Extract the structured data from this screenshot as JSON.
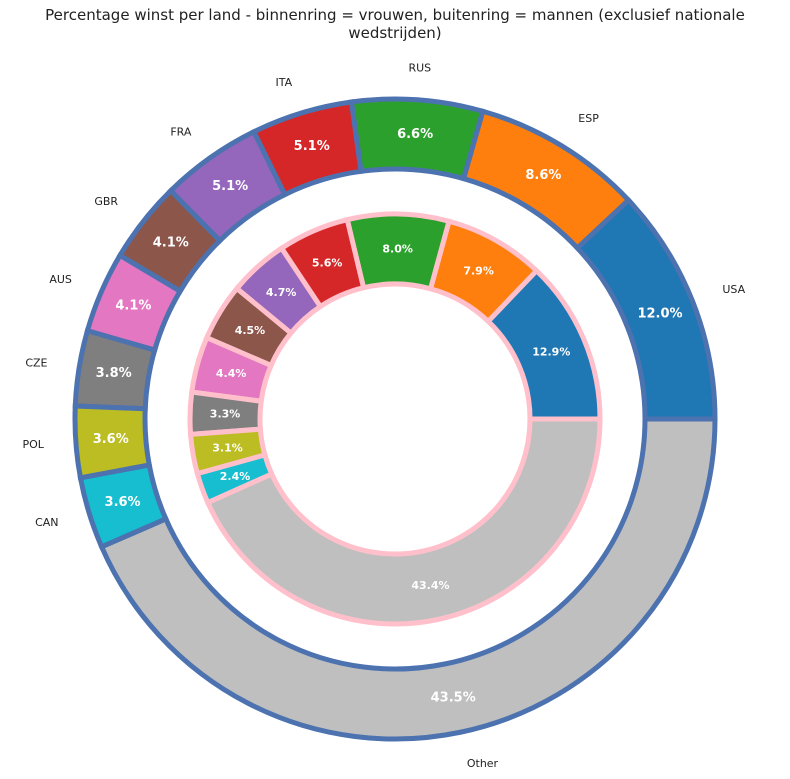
{
  "chart_data": {
    "type": "pie",
    "title": "Percentage winst per land - binnenring = vrouwen, buitenring = mannen (exclusief nationale wedstrijden)",
    "categories": [
      "USA",
      "ESP",
      "RUS",
      "ITA",
      "FRA",
      "GBR",
      "AUS",
      "CZE",
      "POL",
      "CAN",
      "Other"
    ],
    "series": [
      {
        "ring": "outer",
        "values": [
          12.0,
          8.6,
          6.6,
          5.1,
          5.1,
          4.1,
          4.1,
          3.8,
          3.6,
          3.6,
          43.5
        ],
        "labels": [
          "12.0%",
          "8.6%",
          "6.6%",
          "5.1%",
          "5.1%",
          "4.1%",
          "4.1%",
          "3.8%",
          "3.6%",
          "3.6%",
          "43.5%"
        ],
        "edge_color": "#4c72b0"
      },
      {
        "ring": "inner",
        "values": [
          12.9,
          7.9,
          8.0,
          5.6,
          4.7,
          4.5,
          4.4,
          3.3,
          3.1,
          2.4,
          43.4
        ],
        "labels": [
          "12.9%",
          "7.9%",
          "8.0%",
          "5.6%",
          "4.7%",
          "4.5%",
          "4.4%",
          "3.3%",
          "3.1%",
          "2.4%",
          "43.4%"
        ],
        "edge_color": "#ffc0cb"
      }
    ],
    "colors": [
      "#1f77b4",
      "#ff7f0e",
      "#2ca02c",
      "#d62728",
      "#9467bd",
      "#8c564b",
      "#e377c2",
      "#7f7f7f",
      "#bcbd22",
      "#17becf",
      "#bfbfbf"
    ],
    "legend": "none"
  }
}
